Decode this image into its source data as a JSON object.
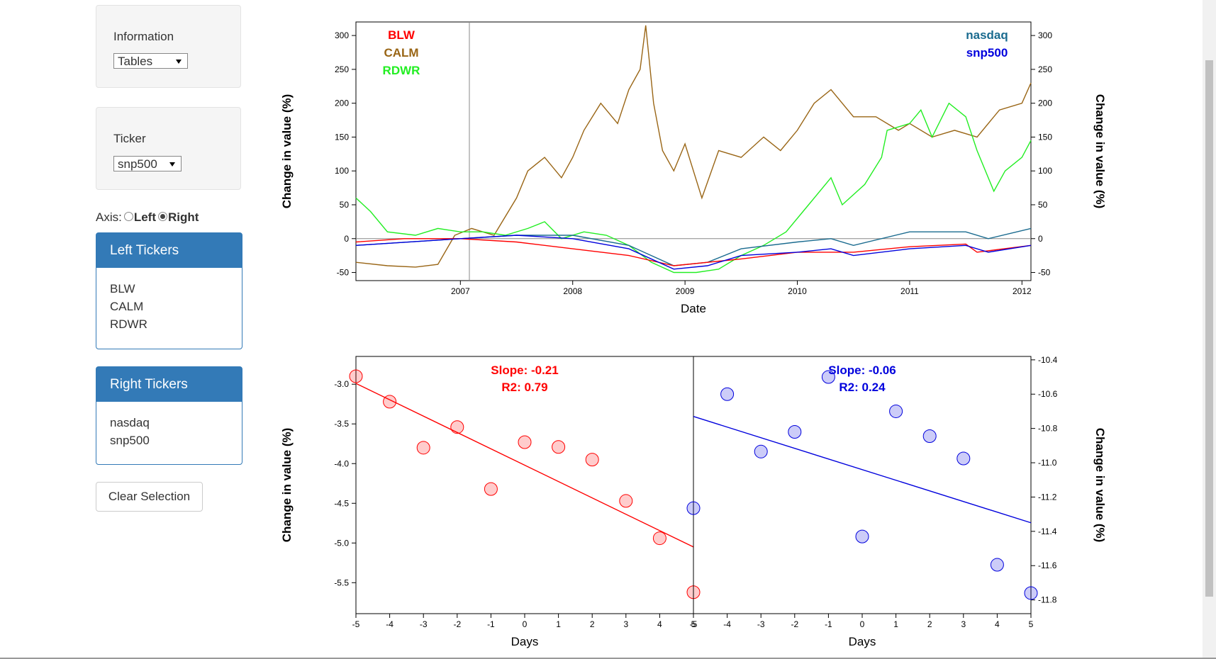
{
  "sidebar": {
    "information": {
      "label": "Information",
      "selected": "Tables"
    },
    "ticker": {
      "label": "Ticker",
      "selected": "snp500"
    },
    "axis": {
      "label": "Axis:",
      "options": [
        "Left",
        "Right"
      ],
      "selected_index": 1
    },
    "left_tickers": {
      "title": "Left Tickers",
      "items": [
        "BLW",
        "CALM",
        "RDWR"
      ]
    },
    "right_tickers": {
      "title": "Right Tickers",
      "items": [
        "nasdaq",
        "snp500"
      ]
    },
    "clear_button": "Clear Selection"
  },
  "chart_data": [
    {
      "type": "line",
      "x_label": "Date",
      "y_label": "Change in value (%)",
      "y2_label": "Change in value (%)",
      "xlim": [
        2006.07,
        2012.08
      ],
      "xticks": [
        2007,
        2008,
        2009,
        2010,
        2011,
        2012
      ],
      "ylim": [
        -62,
        320
      ],
      "yticks": [
        -50,
        0,
        50,
        100,
        150,
        200,
        250,
        300
      ],
      "y2lim": [
        -62,
        320
      ],
      "y2ticks": [
        -50,
        0,
        50,
        100,
        150,
        200,
        250,
        300
      ],
      "zero_line": true,
      "marker_x": 2007.08,
      "series": [
        {
          "name": "BLW",
          "color": "#ff0000",
          "axis": "y",
          "x": [
            2006.07,
            2006.5,
            2007.0,
            2007.5,
            2008.0,
            2008.5,
            2008.9,
            2009.2,
            2009.5,
            2010.0,
            2010.5,
            2011.0,
            2011.5,
            2011.6,
            2012.08
          ],
          "values": [
            -5,
            0,
            0,
            -5,
            -15,
            -25,
            -40,
            -35,
            -30,
            -20,
            -20,
            -12,
            -8,
            -20,
            -10
          ]
        },
        {
          "name": "CALM",
          "color": "#996515",
          "axis": "y",
          "x": [
            2006.07,
            2006.35,
            2006.6,
            2006.8,
            2006.95,
            2007.1,
            2007.3,
            2007.5,
            2007.6,
            2007.75,
            2007.9,
            2008.0,
            2008.1,
            2008.25,
            2008.4,
            2008.5,
            2008.6,
            2008.65,
            2008.72,
            2008.8,
            2008.9,
            2009.0,
            2009.15,
            2009.3,
            2009.5,
            2009.7,
            2009.85,
            2010.0,
            2010.15,
            2010.3,
            2010.5,
            2010.7,
            2010.9,
            2011.0,
            2011.2,
            2011.4,
            2011.6,
            2011.8,
            2012.0,
            2012.08
          ],
          "values": [
            -35,
            -40,
            -42,
            -38,
            5,
            15,
            5,
            60,
            100,
            120,
            90,
            120,
            160,
            200,
            170,
            220,
            250,
            315,
            200,
            130,
            100,
            140,
            60,
            130,
            120,
            150,
            130,
            160,
            200,
            220,
            180,
            180,
            160,
            170,
            150,
            160,
            150,
            190,
            200,
            230
          ]
        },
        {
          "name": "RDWR",
          "color": "#22ee22",
          "axis": "y",
          "x": [
            2006.07,
            2006.2,
            2006.35,
            2006.6,
            2006.8,
            2007.0,
            2007.2,
            2007.4,
            2007.6,
            2007.75,
            2007.9,
            2008.1,
            2008.3,
            2008.5,
            2008.7,
            2008.9,
            2009.1,
            2009.3,
            2009.5,
            2009.7,
            2009.9,
            2010.1,
            2010.3,
            2010.4,
            2010.6,
            2010.75,
            2010.8,
            2011.0,
            2011.1,
            2011.2,
            2011.35,
            2011.5,
            2011.6,
            2011.75,
            2011.85,
            2012.0,
            2012.08
          ],
          "values": [
            60,
            40,
            10,
            5,
            15,
            10,
            10,
            5,
            15,
            25,
            0,
            10,
            5,
            -10,
            -35,
            -50,
            -50,
            -45,
            -25,
            -10,
            10,
            50,
            90,
            50,
            80,
            120,
            160,
            170,
            190,
            150,
            200,
            180,
            130,
            70,
            100,
            120,
            145
          ]
        },
        {
          "name": "nasdaq",
          "color": "#1a6b8f",
          "axis": "y2",
          "x": [
            2006.07,
            2007.0,
            2007.5,
            2008.0,
            2008.5,
            2008.9,
            2009.2,
            2009.5,
            2010.0,
            2010.3,
            2010.5,
            2011.0,
            2011.5,
            2011.7,
            2012.08
          ],
          "values": [
            -10,
            0,
            5,
            5,
            -10,
            -40,
            -35,
            -15,
            -5,
            0,
            -10,
            10,
            10,
            0,
            15
          ]
        },
        {
          "name": "snp500",
          "color": "#0000dd",
          "axis": "y2",
          "x": [
            2006.07,
            2007.0,
            2007.5,
            2008.0,
            2008.5,
            2008.9,
            2009.2,
            2009.5,
            2010.0,
            2010.3,
            2010.5,
            2011.0,
            2011.5,
            2011.7,
            2012.08
          ],
          "values": [
            -10,
            0,
            5,
            0,
            -15,
            -45,
            -40,
            -25,
            -20,
            -15,
            -25,
            -15,
            -10,
            -20,
            -10
          ]
        }
      ]
    },
    {
      "type": "scatter",
      "x_label": "Days",
      "y_label": "Change in value (%)",
      "y_axis_side": "left",
      "color": "#ff0000",
      "xlim": [
        -5,
        5
      ],
      "xticks": [
        -5,
        -4,
        -3,
        -2,
        -1,
        0,
        1,
        2,
        3,
        4,
        5
      ],
      "ylim": [
        -5.89,
        -2.65
      ],
      "yticks": [
        {
          "value": -3,
          "label": "-3.0"
        },
        -3.5,
        {
          "value": -4,
          "label": "-4.0"
        },
        -4.5,
        {
          "value": -5,
          "label": "-5.0"
        },
        -5.5
      ],
      "x": [
        -5,
        -4,
        -3,
        -2,
        -1,
        0,
        1,
        2,
        3,
        4,
        5
      ],
      "values": [
        -2.9,
        -3.22,
        -3.8,
        -3.54,
        -4.32,
        -3.73,
        -3.79,
        -3.95,
        -4.47,
        -4.94,
        -5.62
      ],
      "trend": {
        "x": [
          -5,
          5
        ],
        "values": [
          -2.99,
          -5.05
        ]
      },
      "slope_label": "Slope: -0.21",
      "r2_label": "R2: 0.79"
    },
    {
      "type": "scatter",
      "x_label": "Days",
      "y_label": "Change in value (%)",
      "y_axis_side": "right",
      "color": "#0000dd",
      "xlim": [
        -5,
        5
      ],
      "xticks": [
        -5,
        -4,
        -3,
        -2,
        -1,
        0,
        1,
        2,
        3,
        4,
        5
      ],
      "ylim": [
        -11.88,
        -10.38
      ],
      "yticks": [
        -10.4,
        -10.6,
        -10.8,
        {
          "value": -11,
          "label": "-11.0"
        },
        -11.2,
        -11.4,
        -11.6,
        -11.8
      ],
      "x": [
        -5,
        -4,
        -3,
        -2,
        -1,
        0,
        1,
        2,
        3,
        4,
        5
      ],
      "values": [
        -11.265,
        -10.6,
        -10.935,
        -10.82,
        -10.5,
        -11.43,
        -10.7,
        -10.845,
        -10.975,
        -11.595,
        -11.76
      ],
      "trend": {
        "x": [
          -5,
          5
        ],
        "values": [
          -10.73,
          -11.35
        ]
      },
      "slope_label": "Slope: -0.06",
      "r2_label": "R2: 0.24"
    }
  ]
}
